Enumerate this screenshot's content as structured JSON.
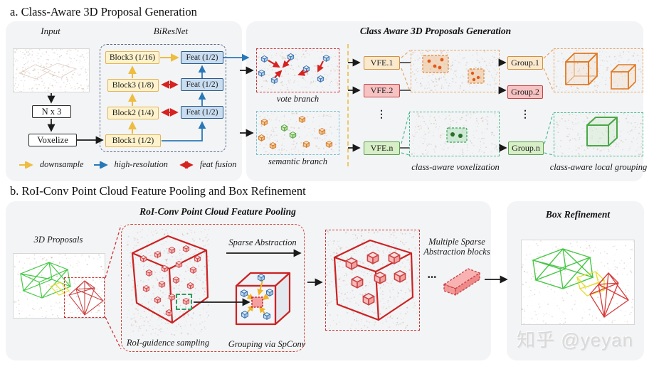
{
  "section_a": {
    "title": "a. Class-Aware 3D Proposal Generation",
    "input_label": "Input",
    "biresnet_label": "BiResNet",
    "nx3_label": "N x 3",
    "voxelize_label": "Voxelize",
    "blocks": [
      "Block3 (1/16)",
      "Block3 (1/8)",
      "Block2 (1/4)",
      "Block1 (1/2)"
    ],
    "feats": [
      "Feat (1/2)",
      "Feat (1/2)",
      "Feat (1/2)"
    ],
    "legend": [
      {
        "label": "downsample",
        "color": "#eebc3e"
      },
      {
        "label": "high-resolution",
        "color": "#2878b8"
      },
      {
        "label": "feat fusion",
        "color": "#d6231f"
      }
    ],
    "right_title": "Class Aware 3D Proposals Generation",
    "vote_branch_label": "vote branch",
    "semantic_branch_label": "semantic branch",
    "vfe_labels": [
      "VFE.1",
      "VFE.2",
      "VFE.n"
    ],
    "group_labels": [
      "Group.1",
      "Group.2",
      "Group.n"
    ],
    "dots": "⋮",
    "voxelization_label": "class-aware voxelization",
    "grouping_label": "class-aware local grouping"
  },
  "section_b": {
    "title": "b. RoI-Conv Point Cloud Feature Pooling and Box Refinement",
    "pooling_title": "RoI-Conv Point Cloud Feature Pooling",
    "proposals_label": "3D Proposals",
    "sampling_label": "RoI-guidence sampling",
    "sparse_abstraction_label": "Sparse Abstraction",
    "spconv_label": "Grouping via SpConv",
    "multi_block_label_1": "Multiple Sparse",
    "multi_block_label_2": "Abstraction blocks",
    "ellipsis": "...",
    "refinement_title": "Box Refinement"
  },
  "watermark": {
    "text": "知乎 @yeyan"
  },
  "colors": {
    "panel_bg": "#f3f4f6",
    "downsample_arrow": "#eebc3e",
    "high_resolution_arrow": "#2878b8",
    "feat_fusion_arrow": "#d6231f",
    "block_fill": "#fdf2cb",
    "block_border": "#e2b457",
    "feat_fill": "#c9ddf1",
    "feat_border": "#2b5a84",
    "class1_border": "#d4913c",
    "class2_border": "#c64545",
    "classn_border": "#57a050",
    "vote_dash": "#cc3333",
    "semantic_dash": "#7ac2d2",
    "roi_dash": "#cc3333",
    "green_dash": "#46bd8c",
    "orange_dash": "#e5a568"
  }
}
